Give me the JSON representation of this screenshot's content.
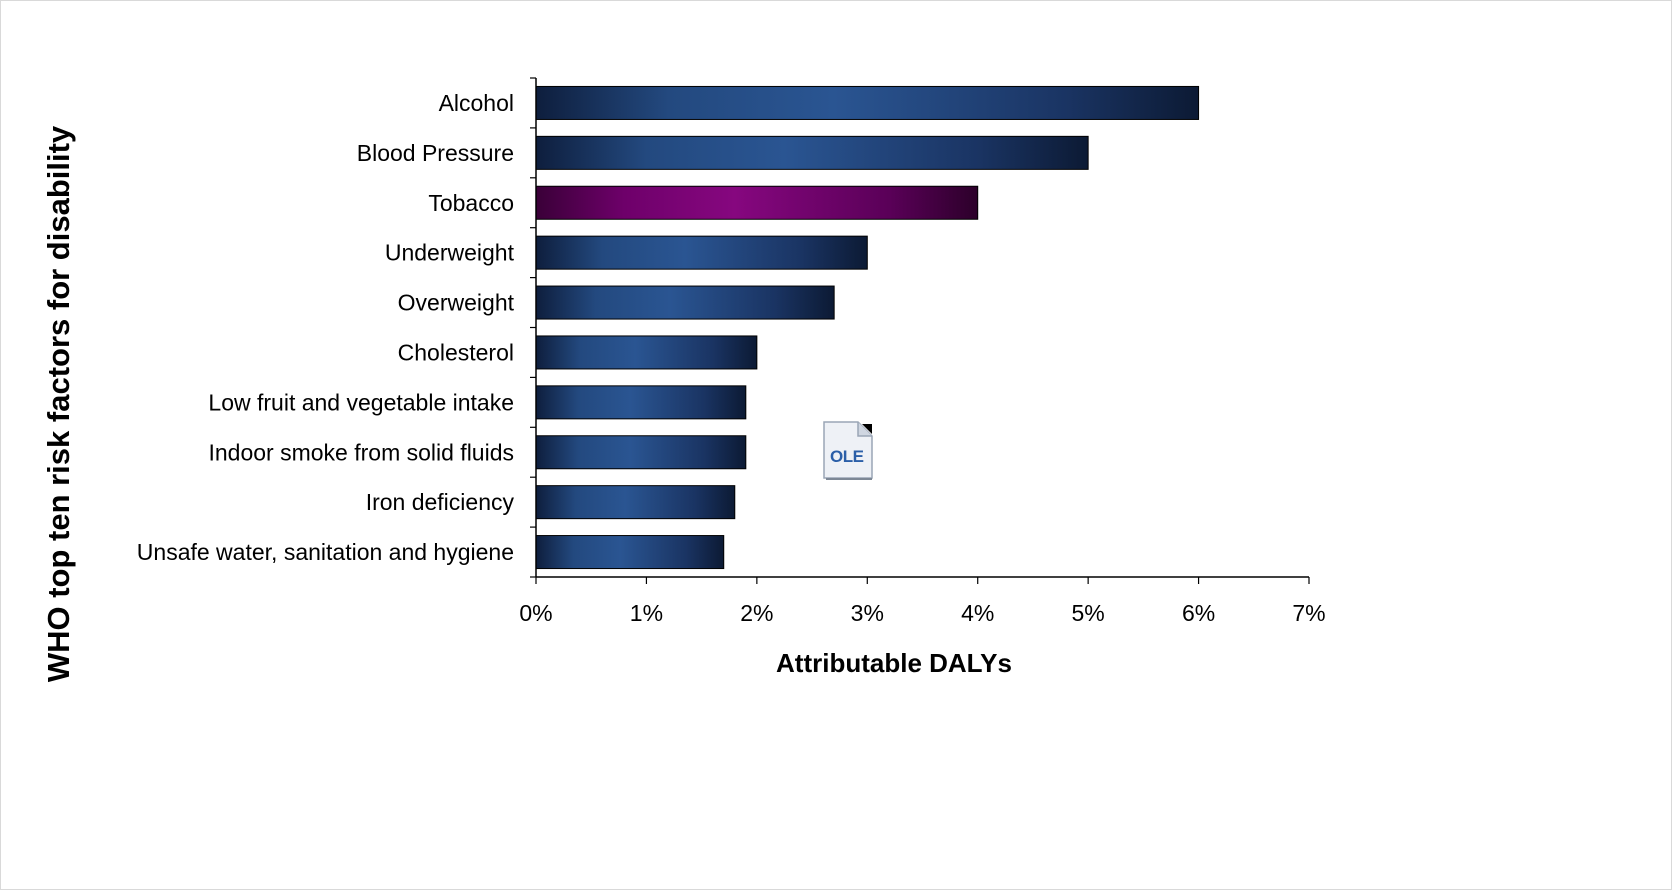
{
  "chart_data": {
    "type": "bar",
    "orientation": "horizontal",
    "title": "",
    "xlabel": "Attributable DALYs",
    "ylabel": "WHO top ten risk factors for disability",
    "categories": [
      "Alcohol",
      "Blood Pressure",
      "Tobacco",
      "Underweight",
      "Overweight",
      "Cholesterol",
      "Low fruit and vegetable intake",
      "Indoor smoke from solid fluids",
      "Iron deficiency",
      "Unsafe water, sanitation and hygiene"
    ],
    "values": [
      6.0,
      5.0,
      4.0,
      3.0,
      2.7,
      2.0,
      1.9,
      1.9,
      1.8,
      1.7
    ],
    "xlim": [
      0,
      7
    ],
    "xticks": [
      "0%",
      "1%",
      "2%",
      "3%",
      "4%",
      "5%",
      "6%",
      "7%"
    ],
    "highlight": {
      "category": "Tobacco",
      "color": "#7a0a78"
    },
    "bar_color": "#1f3f73",
    "grid": false,
    "legend": "none"
  },
  "embedded_object": {
    "label": "OLE",
    "icon": "ole-document-icon"
  }
}
